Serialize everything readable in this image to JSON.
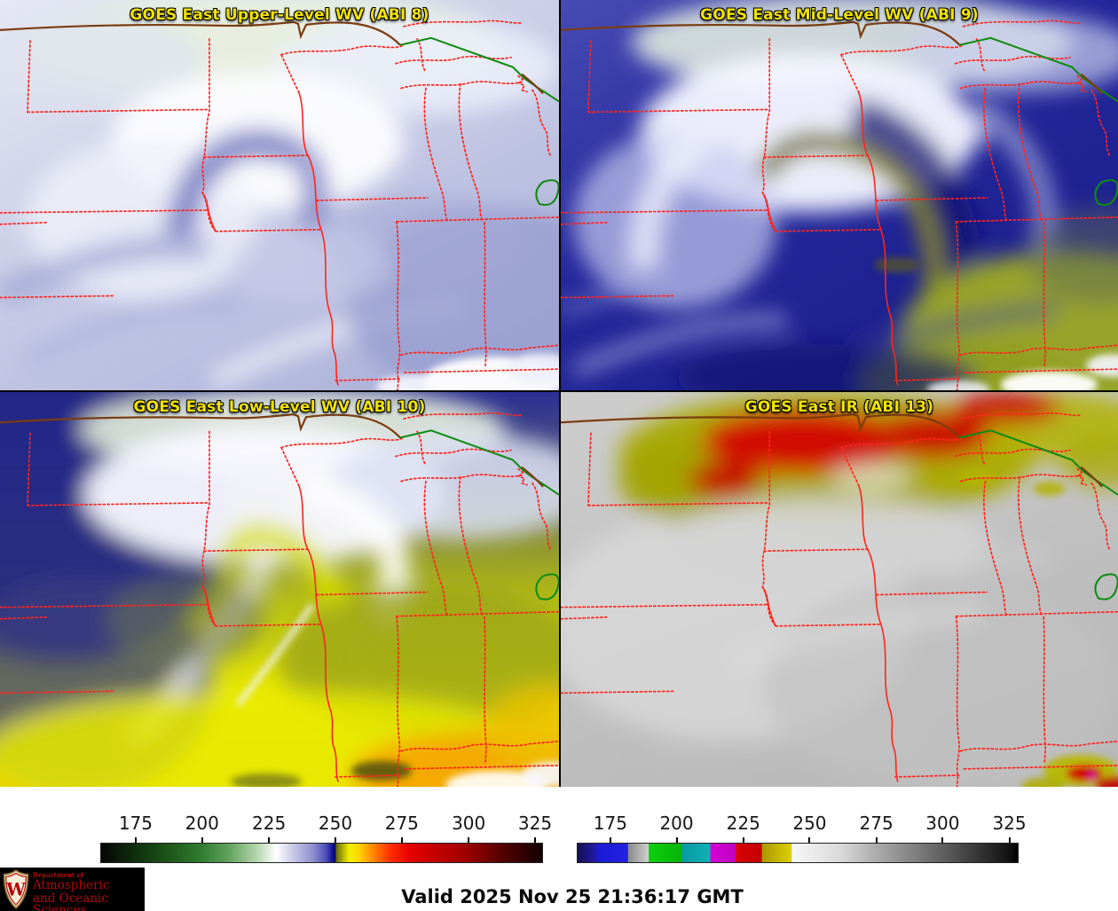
{
  "panels": [
    {
      "title": "GOES East Upper-Level WV (ABI 8)"
    },
    {
      "title": "GOES East Mid-Level WV (ABI 9)"
    },
    {
      "title": "GOES East Low-Level WV (ABI 10)"
    },
    {
      "title": "GOES East IR (ABI 13)"
    }
  ],
  "colorbars": {
    "tick_labels": [
      "175",
      "200",
      "225",
      "250",
      "275",
      "300",
      "325"
    ],
    "left": {
      "name": "water-vapor-colorbar",
      "tick_positions_pct": [
        8.0,
        23.0,
        38.1,
        53.1,
        68.1,
        83.2,
        98.2
      ],
      "stops": [
        [
          0,
          "#060606"
        ],
        [
          8,
          "#10300e"
        ],
        [
          15,
          "#1d5418"
        ],
        [
          22.6,
          "#2e7d2e"
        ],
        [
          29,
          "#61a35c"
        ],
        [
          35.6,
          "#b9d8b2"
        ],
        [
          39.7,
          "#ffffff"
        ],
        [
          44,
          "#c2c2e4"
        ],
        [
          48,
          "#8f8fd0"
        ],
        [
          51,
          "#4d4dbb"
        ],
        [
          53,
          "#000082"
        ],
        [
          53.4,
          "#6e6e08"
        ],
        [
          56.2,
          "#f0f000"
        ],
        [
          58.5,
          "#ffd400"
        ],
        [
          61.3,
          "#ff9000"
        ],
        [
          65.6,
          "#ff2d00"
        ],
        [
          70,
          "#e60000"
        ],
        [
          75,
          "#c80000"
        ],
        [
          82.6,
          "#a00000"
        ],
        [
          90,
          "#5c0000"
        ],
        [
          97.6,
          "#230000"
        ],
        [
          100,
          "#140000"
        ]
      ]
    },
    "right": {
      "name": "infrared-colorbar",
      "tick_positions_pct": [
        7.6,
        22.6,
        37.7,
        52.7,
        67.8,
        82.8,
        97.9
      ],
      "stops": [
        [
          0,
          "#150f52"
        ],
        [
          4.6,
          "#241bb4"
        ],
        [
          4.7,
          "#1b1bd6"
        ],
        [
          11.4,
          "#2222e0"
        ],
        [
          11.5,
          "#8a8a8a"
        ],
        [
          16.1,
          "#d0d0d0"
        ],
        [
          16.2,
          "#0bd00b"
        ],
        [
          23.6,
          "#0ab40a"
        ],
        [
          23.7,
          "#0a9aa4"
        ],
        [
          30.1,
          "#0fb0b4"
        ],
        [
          30.2,
          "#d400d4"
        ],
        [
          35.9,
          "#c000c0"
        ],
        [
          36,
          "#dc0000"
        ],
        [
          41.8,
          "#c00000"
        ],
        [
          41.9,
          "#ab9600"
        ],
        [
          48.6,
          "#dcd000"
        ],
        [
          48.7,
          "#f8f8f8"
        ],
        [
          60,
          "#d8d8d8"
        ],
        [
          68,
          "#ababab"
        ],
        [
          83,
          "#5f5f5f"
        ],
        [
          98,
          "#121212"
        ],
        [
          100,
          "#000000"
        ]
      ]
    }
  },
  "footer": {
    "valid_label": "Valid 2025 Nov 25 21:36:17 GMT",
    "logo": {
      "small": "Department of",
      "line1": "Atmospheric",
      "line2": "and Oceanic Sciences",
      "monogram": "W",
      "brand_color": "#b5050c"
    }
  },
  "colors": {
    "title_text": "#f2e300",
    "state_border": "#ff241c",
    "national_border": "#7c3c10",
    "lake_outline": "#0f8a12",
    "background": "#ffffff",
    "panel_separator": "#000000"
  }
}
